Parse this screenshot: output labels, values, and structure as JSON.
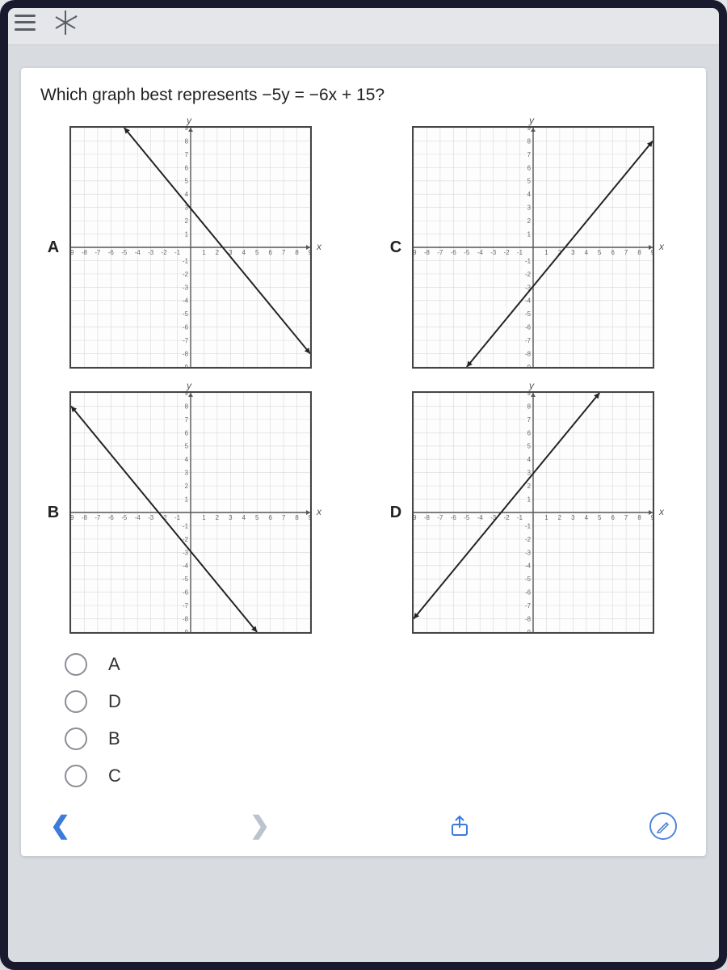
{
  "question": "Which graph best represents −5y = −6x + 15?",
  "axes": {
    "x_label": "x",
    "y_label": "y",
    "xlim": [
      -9,
      9
    ],
    "ylim": [
      -9,
      9
    ],
    "tick_step": 1,
    "grid_color": "#d8d8d8",
    "axis_color": "#555555",
    "background_color": "#ffffff",
    "border_color": "#444444"
  },
  "line_style": {
    "color": "#222222",
    "width": 2,
    "arrows": true
  },
  "graphs": {
    "A": {
      "label": "A",
      "slope": -1.2,
      "intercept": 3,
      "p1": [
        -5,
        9
      ],
      "p2": [
        9,
        -8
      ]
    },
    "B": {
      "label": "B",
      "slope": -1.2,
      "intercept": -3,
      "p1": [
        -9,
        8
      ],
      "p2": [
        5,
        -9
      ]
    },
    "C": {
      "label": "C",
      "slope": 1.2,
      "intercept": -3,
      "p1": [
        -5,
        -9
      ],
      "p2": [
        9,
        8
      ]
    },
    "D": {
      "label": "D",
      "slope": 1.2,
      "intercept": 3,
      "p1": [
        -9,
        -8
      ],
      "p2": [
        5,
        9
      ]
    }
  },
  "answer_options": [
    {
      "value": "A",
      "label": "A"
    },
    {
      "value": "D",
      "label": "D"
    },
    {
      "value": "B",
      "label": "B"
    },
    {
      "value": "C",
      "label": "C"
    }
  ],
  "nav": {
    "prev_enabled": true,
    "next_enabled": false
  },
  "colors": {
    "page_bg": "#d8dce0",
    "card_bg": "#ffffff",
    "accent": "#3b7bdc",
    "text": "#222222"
  }
}
